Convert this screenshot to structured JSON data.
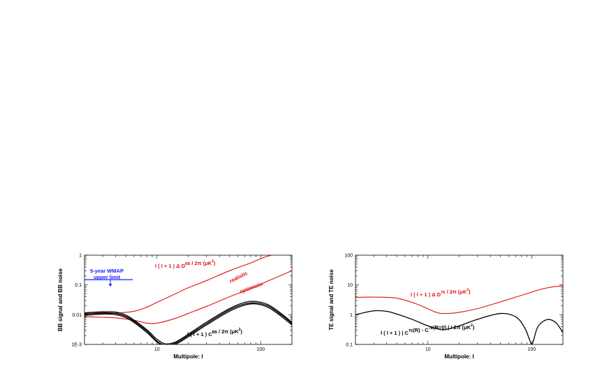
{
  "chart_data": [
    {
      "type": "line",
      "xlabel": "Multipole: l",
      "ylabel": "BB signal and BB noise",
      "xscale": "log",
      "yscale": "log",
      "xlim": [
        2,
        200
      ],
      "ylim": [
        0.001,
        1
      ],
      "xtick_labels": [
        "10",
        "100"
      ],
      "ytick_labels": [
        "1E-3",
        "0.01",
        "0.1",
        "1"
      ],
      "annotations": {
        "noise_formula": {
          "pre": "l ( l + 1 ) Δ D",
          "sub": "l",
          "sup": "BB",
          "post": " / 2π (μK",
          "sup2": "2",
          "end": ")",
          "color": "#dd1111"
        },
        "signal_formula": {
          "pre": "l ( l + 1 ) C",
          "sub": "l",
          "sup": "BB",
          "post": " / 2π (μK",
          "sup2": "2",
          "end": ")",
          "color": "#000000"
        },
        "realistic": "realistic",
        "optimistic": "optimistic",
        "wmap_line1": "5-year WMAP",
        "wmap_line2": "upper limit",
        "wmap_color": "#1a1aff"
      },
      "series": [
        {
          "name": "realistic",
          "color": "#dd1111",
          "x": [
            2,
            3,
            4,
            6,
            8,
            10,
            15,
            20,
            30,
            50,
            80,
            120,
            200
          ],
          "y": [
            0.011,
            0.011,
            0.0112,
            0.013,
            0.018,
            0.026,
            0.05,
            0.08,
            0.14,
            0.3,
            0.55,
            0.95,
            1.2
          ]
        },
        {
          "name": "optimistic",
          "color": "#dd1111",
          "x": [
            2,
            3,
            4,
            6,
            8,
            10,
            15,
            20,
            30,
            50,
            80,
            120,
            200
          ],
          "y": [
            0.0085,
            0.0082,
            0.0078,
            0.0065,
            0.0052,
            0.0052,
            0.0075,
            0.011,
            0.019,
            0.04,
            0.075,
            0.14,
            0.3
          ]
        },
        {
          "x": [
            2,
            3,
            4,
            5,
            6,
            8,
            10,
            12,
            15,
            20,
            30,
            50,
            70,
            90,
            120,
            160,
            200
          ],
          "y": [
            0.0095,
            0.0105,
            0.01,
            0.008,
            0.0055,
            0.0025,
            0.0012,
            0.00085,
            0.001,
            0.0018,
            0.0045,
            0.013,
            0.021,
            0.023,
            0.017,
            0.0085,
            0.0045
          ],
          "color": "#000000"
        },
        {
          "x": [
            2,
            3,
            4,
            5,
            6,
            8,
            10,
            12,
            15,
            20,
            30,
            50,
            70,
            90,
            120,
            160,
            200
          ],
          "y": [
            0.0105,
            0.0115,
            0.011,
            0.0088,
            0.006,
            0.0028,
            0.0013,
            0.00095,
            0.0011,
            0.002,
            0.005,
            0.0145,
            0.023,
            0.025,
            0.019,
            0.0095,
            0.005
          ],
          "color": "#000000"
        },
        {
          "x": [
            2,
            3,
            4,
            5,
            6,
            8,
            10,
            12,
            15,
            20,
            30,
            50,
            70,
            90,
            120,
            160,
            200
          ],
          "y": [
            0.0115,
            0.0125,
            0.0122,
            0.0097,
            0.0066,
            0.0031,
            0.0015,
            0.00105,
            0.0012,
            0.0022,
            0.0056,
            0.016,
            0.026,
            0.028,
            0.021,
            0.0105,
            0.0055
          ],
          "color": "#000000"
        }
      ],
      "wmap_limit": {
        "y": 0.15
      }
    },
    {
      "type": "line",
      "xlabel": "Multipole: l",
      "ylabel": "TE signal and TE noise",
      "xscale": "log",
      "yscale": "log",
      "xlim": [
        2,
        200
      ],
      "ylim": [
        0.1,
        100
      ],
      "xtick_labels": [
        "10",
        "100"
      ],
      "ytick_labels": [
        "0.1",
        "1",
        "10",
        "100"
      ],
      "annotations": {
        "noise_formula": {
          "pre": "l ( l + 1 ) Δ D",
          "sub": "l",
          "sup": "TE",
          "post": " / 2π (μK",
          "sup2": "2",
          "end": ")",
          "color": "#dd1111"
        },
        "signal_formula": {
          "pre": "l ( l + 1 ) | C",
          "sub": "l",
          "sup": "TE",
          "mid": "(R) - C",
          "sub2": "l",
          "sup3": "TE",
          "post": "(R=0) | / 2π (μK",
          "sup2": "2",
          "end": ")",
          "color": "#000000"
        }
      },
      "series": [
        {
          "color": "#dd1111",
          "x": [
            2,
            3,
            5,
            8,
            12,
            15,
            20,
            30,
            50,
            80,
            120,
            160,
            200
          ],
          "y": [
            3.8,
            3.9,
            3.6,
            2.2,
            1.2,
            1.1,
            1.2,
            1.6,
            2.7,
            4.5,
            7,
            8.6,
            9.3
          ]
        },
        {
          "color": "#000000",
          "x": [
            2,
            3,
            4,
            5,
            7,
            10,
            13,
            15,
            20,
            30,
            50,
            70,
            85,
            95,
            100,
            105,
            115,
            140,
            170,
            200
          ],
          "y": [
            1.0,
            1.35,
            1.3,
            1.05,
            0.7,
            0.42,
            0.32,
            0.32,
            0.42,
            0.7,
            1.1,
            0.85,
            0.38,
            0.15,
            0.1,
            0.15,
            0.4,
            0.68,
            0.55,
            0.25
          ]
        }
      ]
    }
  ]
}
